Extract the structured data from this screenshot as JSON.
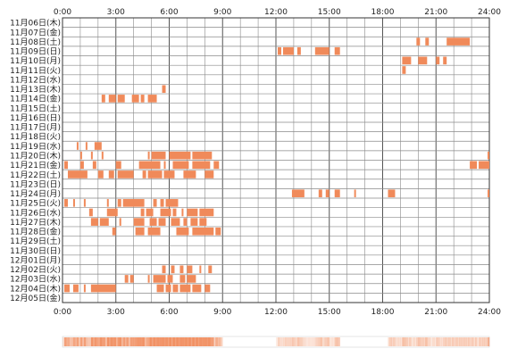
{
  "chart_data": {
    "type": "heatmap",
    "title": "",
    "xlabel": "",
    "ylabel": "",
    "xlim": [
      0,
      24
    ],
    "x_unit": "hour",
    "x_ticks": [
      "0:00",
      "3:00",
      "6:00",
      "9:00",
      "12:00",
      "15:00",
      "18:00",
      "21:00",
      "24:00"
    ],
    "grid": true,
    "colors": {
      "activity": "#f08a5a",
      "grid": "#8a8a8a",
      "axis": "#333333"
    },
    "rows": [
      {
        "label": "11月06日(木)",
        "intervals": []
      },
      {
        "label": "11月07日(金)",
        "intervals": []
      },
      {
        "label": "11月08日(土)",
        "intervals": [
          [
            19.9,
            20.1
          ],
          [
            20.4,
            20.6
          ],
          [
            21.6,
            22.9
          ]
        ]
      },
      {
        "label": "11月09日(日)",
        "intervals": [
          [
            12.1,
            12.3
          ],
          [
            12.4,
            13.0
          ],
          [
            13.2,
            13.4
          ],
          [
            14.2,
            15.0
          ],
          [
            15.3,
            15.6
          ]
        ]
      },
      {
        "label": "11月10日(月)",
        "intervals": [
          [
            19.1,
            19.6
          ],
          [
            20.0,
            20.5
          ],
          [
            21.0,
            21.2
          ],
          [
            21.4,
            21.6
          ]
        ]
      },
      {
        "label": "11月11日(火)",
        "intervals": [
          [
            19.1,
            19.3
          ]
        ]
      },
      {
        "label": "11月12日(水)",
        "intervals": []
      },
      {
        "label": "11月13日(木)",
        "intervals": [
          [
            5.6,
            5.8
          ]
        ]
      },
      {
        "label": "11月14日(金)",
        "intervals": [
          [
            2.2,
            2.4
          ],
          [
            2.6,
            3.0
          ],
          [
            3.1,
            3.5
          ],
          [
            3.9,
            4.3
          ],
          [
            4.4,
            4.6
          ],
          [
            4.8,
            5.3
          ]
        ]
      },
      {
        "label": "11月15日(土)",
        "intervals": []
      },
      {
        "label": "11月16日(日)",
        "intervals": []
      },
      {
        "label": "11月17日(月)",
        "intervals": []
      },
      {
        "label": "11月18日(火)",
        "intervals": []
      },
      {
        "label": "11月19日(水)",
        "intervals": [
          [
            0.8,
            0.9
          ],
          [
            1.3,
            1.4
          ],
          [
            1.8,
            2.2
          ]
        ]
      },
      {
        "label": "11月20日(木)",
        "intervals": [
          [
            1.0,
            1.1
          ],
          [
            1.6,
            1.7
          ],
          [
            2.2,
            2.3
          ],
          [
            4.8,
            4.9
          ],
          [
            5.0,
            5.8
          ],
          [
            6.0,
            7.2
          ],
          [
            7.3,
            8.4
          ],
          [
            23.9,
            24.0
          ]
        ]
      },
      {
        "label": "11月21日(金)",
        "intervals": [
          [
            0.1,
            0.3
          ],
          [
            1.0,
            1.2
          ],
          [
            1.7,
            1.9
          ],
          [
            3.0,
            3.3
          ],
          [
            4.3,
            5.5
          ],
          [
            5.7,
            5.8
          ],
          [
            6.2,
            7.1
          ],
          [
            7.3,
            8.3
          ],
          [
            8.5,
            8.8
          ],
          [
            22.9,
            23.3
          ],
          [
            23.4,
            24.0
          ]
        ]
      },
      {
        "label": "11月22日(土)",
        "intervals": [
          [
            0.3,
            1.4
          ],
          [
            2.0,
            2.3
          ],
          [
            2.6,
            2.9
          ],
          [
            3.1,
            4.0
          ],
          [
            4.5,
            4.7
          ],
          [
            4.8,
            5.6
          ],
          [
            5.7,
            6.3
          ],
          [
            6.8,
            7.5
          ],
          [
            8.0,
            8.5
          ]
        ]
      },
      {
        "label": "11月23日(日)",
        "intervals": []
      },
      {
        "label": "11月24日(月)",
        "intervals": [
          [
            12.9,
            13.6
          ],
          [
            14.4,
            14.6
          ],
          [
            14.8,
            15.0
          ],
          [
            15.3,
            15.6
          ],
          [
            16.4,
            16.5
          ],
          [
            18.3,
            18.7
          ],
          [
            23.9,
            24.0
          ]
        ]
      },
      {
        "label": "11月25日(火)",
        "intervals": [
          [
            0.1,
            0.3
          ],
          [
            0.6,
            0.7
          ],
          [
            1.2,
            1.3
          ],
          [
            2.5,
            2.6
          ],
          [
            3.1,
            3.3
          ],
          [
            3.4,
            4.6
          ],
          [
            5.1,
            5.3
          ],
          [
            5.5,
            5.7
          ],
          [
            5.8,
            6.5
          ]
        ]
      },
      {
        "label": "11月26日(水)",
        "intervals": [
          [
            1.5,
            1.7
          ],
          [
            2.5,
            3.1
          ],
          [
            4.4,
            4.6
          ],
          [
            4.7,
            5.1
          ],
          [
            5.5,
            6.1
          ],
          [
            6.2,
            6.4
          ],
          [
            6.7,
            6.8
          ],
          [
            7.0,
            7.6
          ],
          [
            7.7,
            8.5
          ]
        ]
      },
      {
        "label": "11月27日(木)",
        "intervals": [
          [
            1.6,
            2.0
          ],
          [
            2.1,
            2.6
          ],
          [
            3.2,
            3.3
          ],
          [
            4.0,
            4.6
          ],
          [
            4.9,
            5.3
          ],
          [
            5.4,
            5.8
          ],
          [
            6.1,
            6.6
          ],
          [
            6.8,
            7.0
          ],
          [
            7.2,
            7.6
          ],
          [
            7.7,
            8.1
          ]
        ]
      },
      {
        "label": "11月28日(金)",
        "intervals": [
          [
            2.8,
            3.0
          ],
          [
            4.1,
            4.6
          ],
          [
            4.8,
            5.5
          ],
          [
            6.4,
            7.1
          ],
          [
            7.3,
            8.5
          ],
          [
            8.6,
            8.9
          ]
        ]
      },
      {
        "label": "11月29日(土)",
        "intervals": []
      },
      {
        "label": "11月30日(日)",
        "intervals": []
      },
      {
        "label": "12月01日(月)",
        "intervals": []
      },
      {
        "label": "12月02日(火)",
        "intervals": [
          [
            5.6,
            5.8
          ],
          [
            6.1,
            6.3
          ],
          [
            6.6,
            6.8
          ],
          [
            7.0,
            7.3
          ],
          [
            7.7,
            7.8
          ],
          [
            8.2,
            8.4
          ]
        ]
      },
      {
        "label": "12月03日(水)",
        "intervals": [
          [
            3.5,
            3.7
          ],
          [
            3.8,
            4.0
          ],
          [
            4.8,
            4.9
          ],
          [
            5.1,
            5.8
          ],
          [
            5.9,
            6.2
          ],
          [
            6.6,
            6.9
          ],
          [
            7.0,
            7.5
          ]
        ]
      },
      {
        "label": "12月04日(木)",
        "intervals": [
          [
            0.1,
            0.4
          ],
          [
            0.6,
            0.9
          ],
          [
            1.2,
            1.3
          ],
          [
            1.6,
            3.0
          ],
          [
            5.3,
            5.7
          ],
          [
            5.8,
            6.1
          ],
          [
            6.2,
            6.5
          ],
          [
            6.6,
            7.2
          ],
          [
            7.3,
            7.8
          ],
          [
            8.0,
            8.3
          ]
        ]
      },
      {
        "label": "12月05日(金)",
        "intervals": []
      }
    ],
    "density_ranges": [
      {
        "start": 0.0,
        "end": 9.0,
        "level": 0.45
      },
      {
        "start": 12.0,
        "end": 15.6,
        "level": 0.25
      },
      {
        "start": 18.3,
        "end": 24.0,
        "level": 0.3
      }
    ]
  }
}
